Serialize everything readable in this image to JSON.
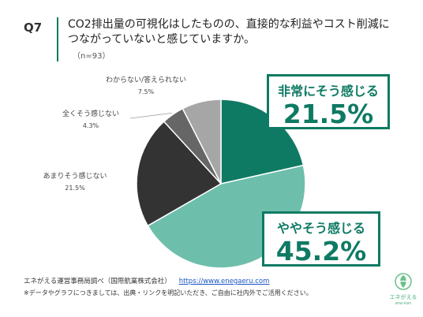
{
  "header": {
    "q_number": "Q7",
    "question_line1": "CO2排出量の可視化はしたものの、直接的な利益やコスト削減に",
    "question_line2": "つながっていないと感じていますか。",
    "sample_size": "（n=93）"
  },
  "chart_data": {
    "type": "pie",
    "start_angle_deg": 0,
    "direction": "clockwise",
    "slices": [
      {
        "label": "非常にそう感じる",
        "value": 21.5,
        "display": "21.5%",
        "color": "#0f7a63"
      },
      {
        "label": "ややそう感じる",
        "value": 45.2,
        "display": "45.2%",
        "color": "#6dbfab"
      },
      {
        "label": "あまりそう感じない",
        "value": 21.5,
        "display": "21.5%",
        "color": "#333333"
      },
      {
        "label": "全くそう感じない",
        "value": 4.3,
        "display": "4.3%",
        "color": "#666666"
      },
      {
        "label": "わからない/答えられない",
        "value": 7.5,
        "display": "7.5%",
        "color": "#a6a6a6"
      }
    ]
  },
  "footer": {
    "source": "エネがえる運営事務局調べ（国際航業株式会社）",
    "url": "https://www.enegaeru.com",
    "note": "※データやグラフにつきましては、出典・リンクを明記いただき、ご自由に社内外でご活用ください。"
  },
  "logo": {
    "name": "エネがえる",
    "sub": "ene-kan"
  }
}
